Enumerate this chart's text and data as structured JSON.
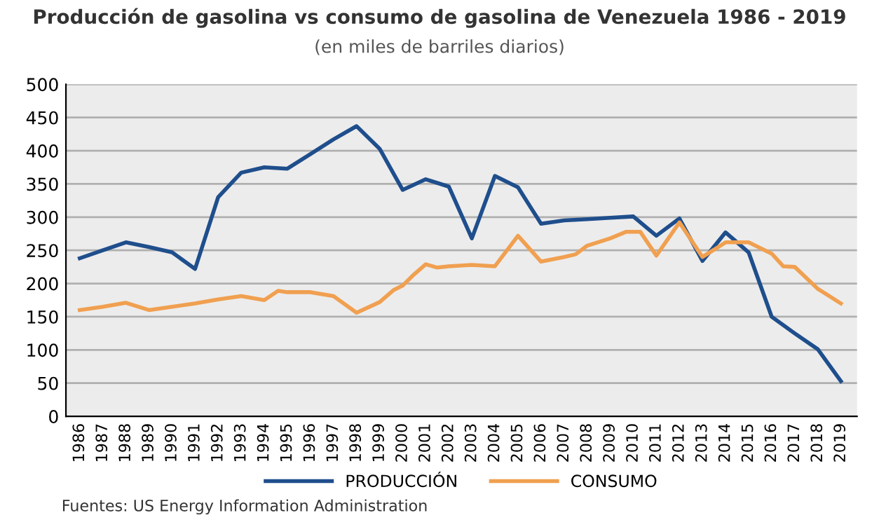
{
  "chart_data": {
    "type": "line",
    "title": "Producción de gasolina vs consumo de gasolina de Venezuela 1986 - 2019",
    "subtitle": "(en miles de barriles diarios)",
    "xlim": [
      1985.4,
      2019.7
    ],
    "xticks": [
      1986,
      1987,
      1988,
      1989,
      1990,
      1991,
      1992,
      1993,
      1994,
      1995,
      1996,
      1997,
      1998,
      1999,
      2000,
      2001,
      2002,
      2003,
      2004,
      2005,
      2006,
      2007,
      2008,
      2009,
      2010,
      2011,
      2012,
      2013,
      2014,
      2015,
      2016,
      2017,
      2018,
      2019
    ],
    "ylim": [
      0,
      500
    ],
    "yticks": [
      0,
      50,
      100,
      150,
      200,
      250,
      300,
      350,
      400,
      450,
      500
    ],
    "grid": "y",
    "legend": "bottom",
    "line_style": "solid",
    "marker": "none",
    "series": [
      {
        "name": "PRODUCCIÓN",
        "color": "#1f4e8c",
        "x": [
          1986,
          1987,
          1988,
          1989,
          1990,
          1991,
          1992,
          1993,
          1994,
          1995,
          1996,
          1997,
          1998,
          1999,
          2000,
          2001,
          2002,
          2003,
          2004,
          2005,
          2006,
          2007,
          2008,
          2009,
          2010,
          2011,
          2012,
          2013,
          2014,
          2015,
          2016,
          2017,
          2018,
          2019
        ],
        "values": [
          238,
          250,
          262,
          255,
          247,
          222,
          330,
          367,
          375,
          373,
          395,
          417,
          437,
          403,
          341,
          357,
          346,
          268,
          362,
          345,
          290,
          295,
          297,
          299,
          301,
          272,
          298,
          234,
          277,
          247,
          150,
          125,
          101,
          53
        ]
      },
      {
        "name": "CONSUMO",
        "color": "#f0a050",
        "x": [
          1986,
          1987,
          1988,
          1989,
          1990,
          1991,
          1992,
          1993,
          1994,
          1994.6,
          1995,
          1996,
          1997,
          1998,
          1999,
          1999.6,
          2000,
          2000.5,
          2001,
          2001.5,
          2002,
          2003,
          2004,
          2005,
          2006,
          2007,
          2007.5,
          2008,
          2009,
          2009.7,
          2010.3,
          2011,
          2012,
          2013,
          2014,
          2015,
          2016,
          2016.5,
          2017,
          2018,
          2019
        ],
        "values": [
          160,
          165,
          171,
          160,
          165,
          170,
          176,
          181,
          175,
          189,
          187,
          187,
          181,
          156,
          172,
          190,
          197,
          214,
          229,
          224,
          226,
          228,
          226,
          272,
          233,
          240,
          244,
          257,
          268,
          278,
          278,
          242,
          292,
          240,
          262,
          262,
          245,
          226,
          225,
          192,
          170
        ]
      }
    ],
    "annotations": [
      "Fuentes: US Energy Information Administration"
    ]
  }
}
